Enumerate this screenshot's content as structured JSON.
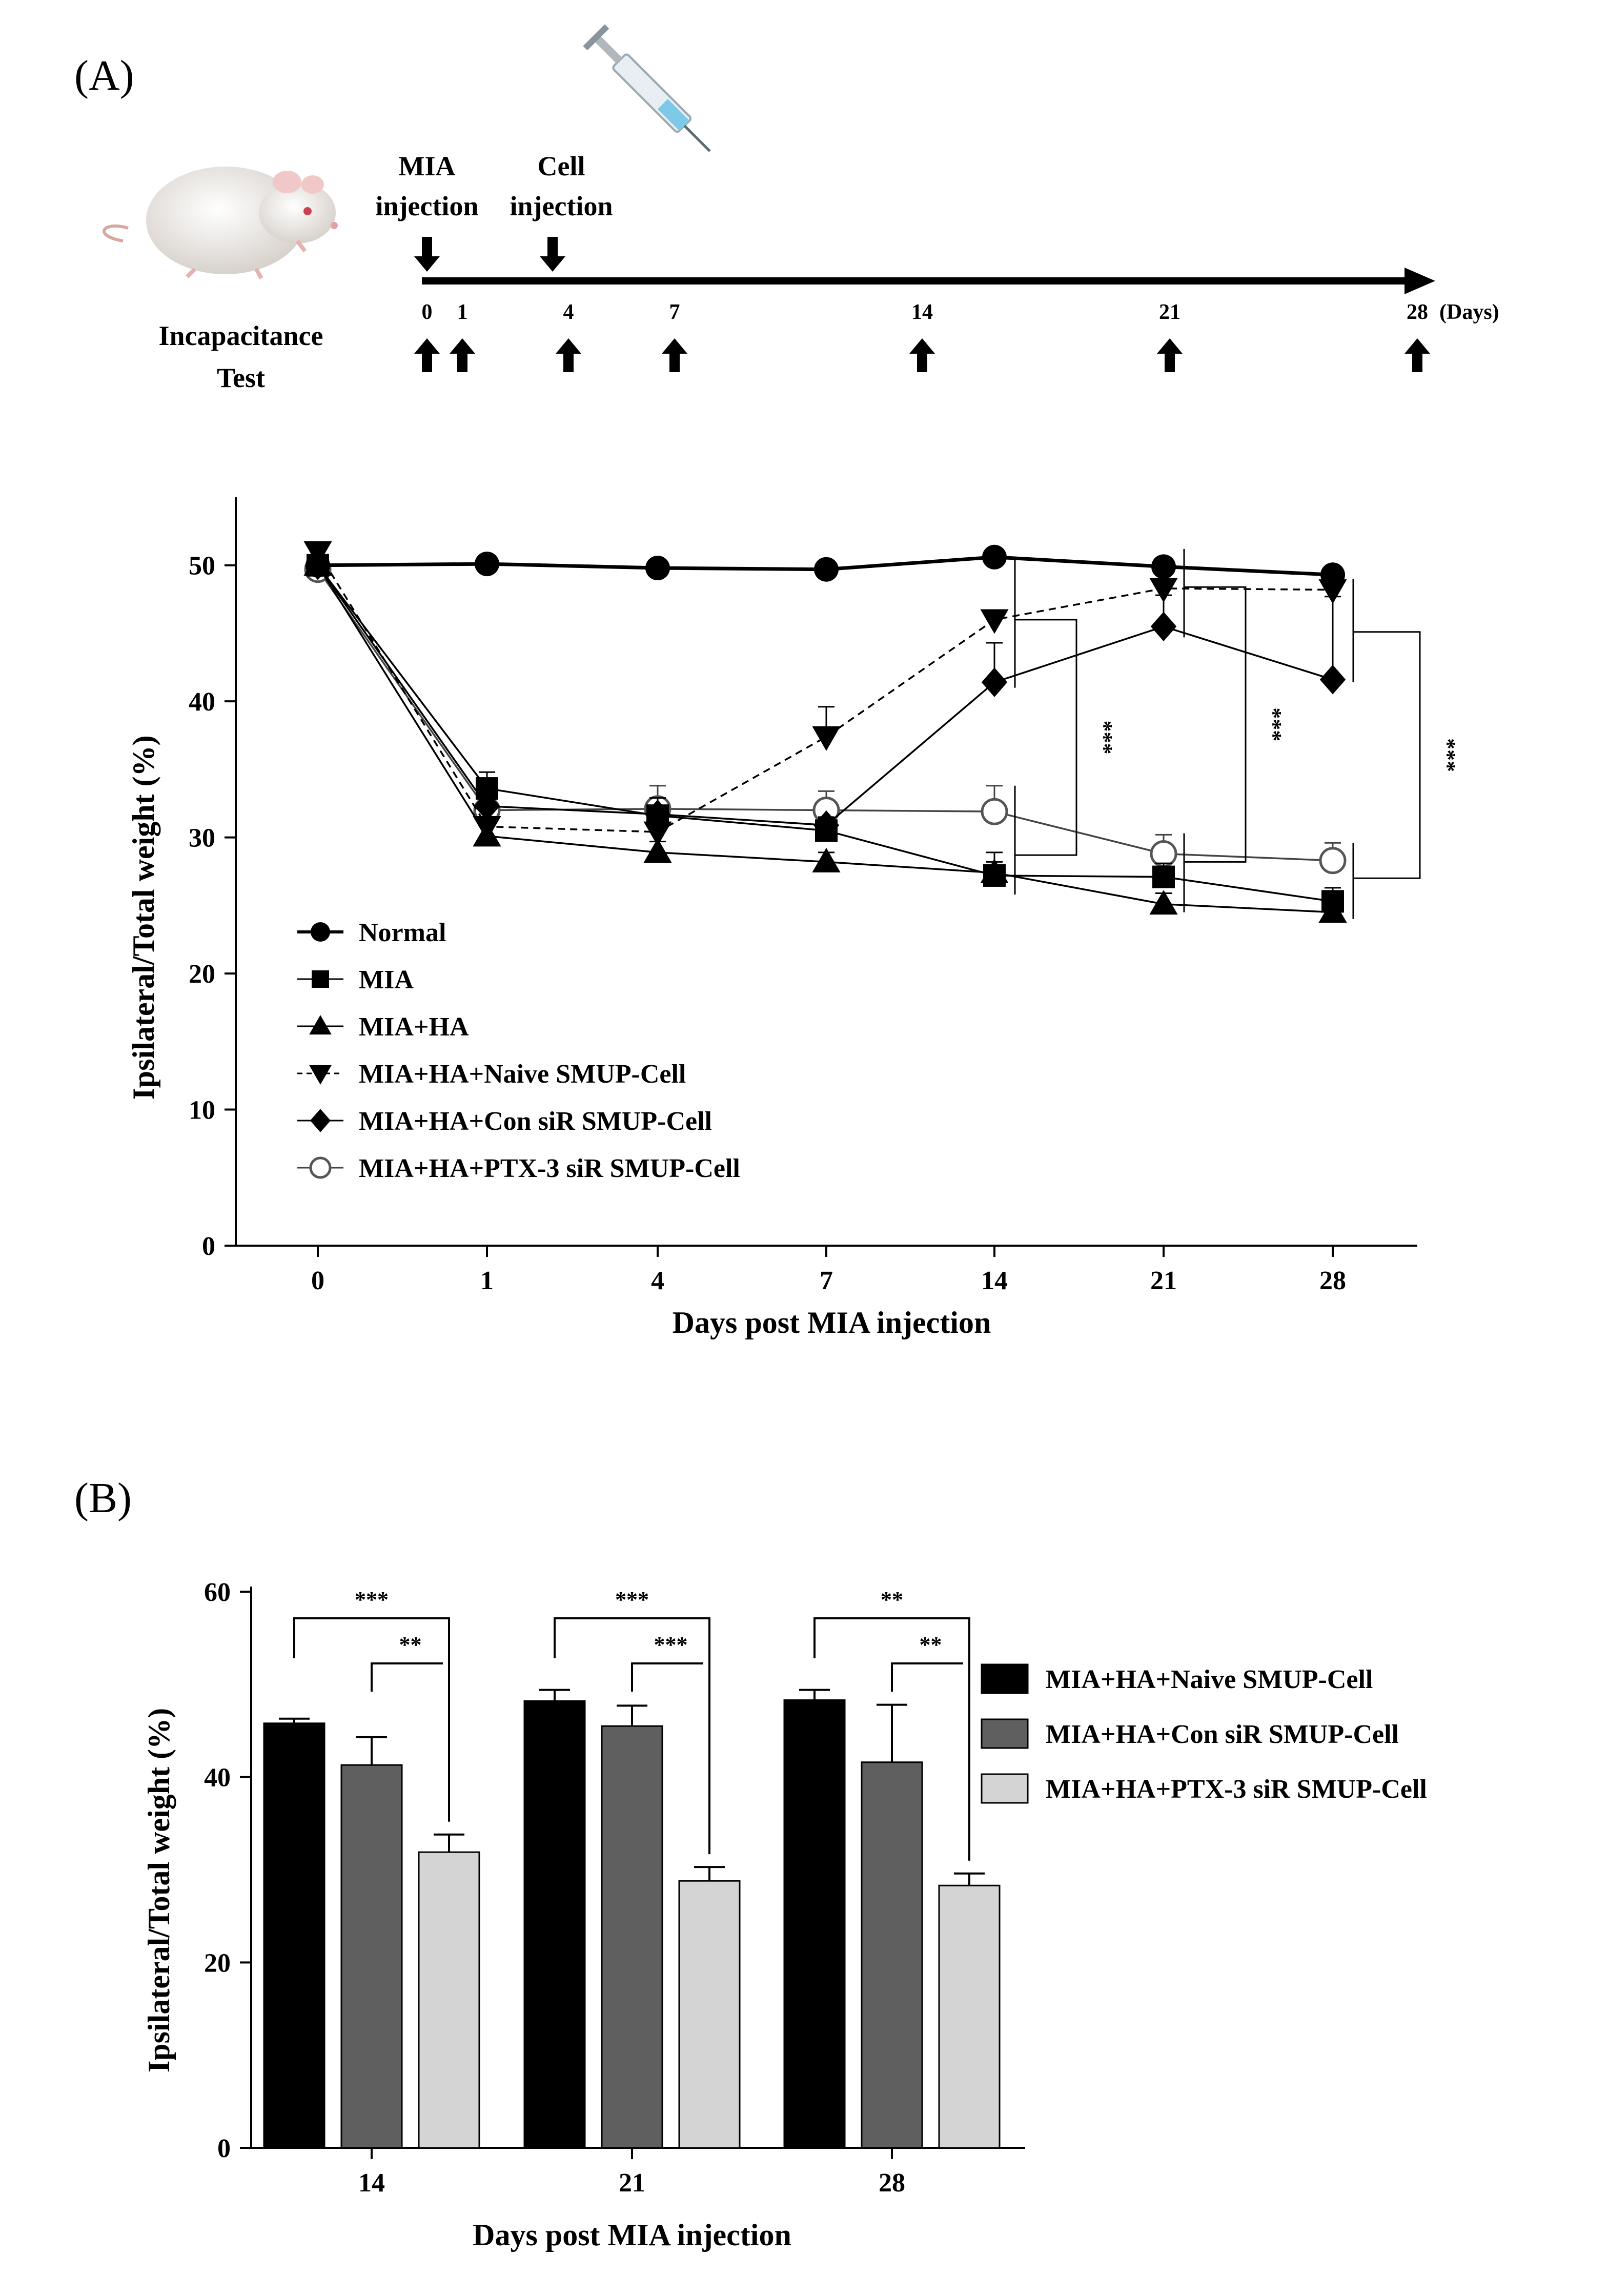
{
  "panels": {
    "a_label": "(A)",
    "b_label": "(B)"
  },
  "timeline": {
    "test_label_line1": "Incapacitance",
    "test_label_line2": "Test",
    "mia_label_line1": "MIA",
    "mia_label_line2": "injection",
    "cell_label_line1": "Cell",
    "cell_label_line2": "injection",
    "days": [
      "0",
      "1",
      "4",
      "7",
      "14",
      "21",
      "28"
    ],
    "days_unit": "(Days)",
    "icons": [
      "rat-icon",
      "syringe-icon"
    ]
  },
  "chart_data": [
    {
      "type": "line",
      "xlabel": "Days post MIA injection",
      "ylabel": "Ipsilateral/Total weight (%)",
      "categories": [
        "0",
        "1",
        "4",
        "7",
        "14",
        "21",
        "28"
      ],
      "ylim": [
        0,
        55
      ],
      "yticks": [
        "0",
        "10",
        "20",
        "30",
        "40",
        "50"
      ],
      "legend_position": "bottom-left",
      "series": [
        {
          "name": "Normal",
          "marker": "circle",
          "line": "solid-bold",
          "values": [
            50.0,
            50.1,
            49.8,
            49.7,
            50.6,
            49.9,
            49.3
          ],
          "err": [
            0,
            0.3,
            0.3,
            0.3,
            0.3,
            0.3,
            0.3
          ]
        },
        {
          "name": "MIA",
          "marker": "square",
          "line": "solid",
          "values": [
            50.0,
            33.6,
            31.6,
            30.5,
            27.2,
            27.1,
            25.3
          ],
          "err": [
            0,
            1.2,
            1.3,
            1.0,
            1.0,
            1.0,
            1.0
          ]
        },
        {
          "name": "MIA+HA",
          "marker": "triangle-up",
          "line": "solid",
          "values": [
            50.0,
            30.1,
            28.9,
            28.2,
            27.4,
            25.1,
            24.5
          ],
          "err": [
            0,
            0.8,
            0.8,
            0.7,
            1.5,
            0.8,
            0.8
          ]
        },
        {
          "name": "MIA+HA+Naive SMUP-Cell",
          "marker": "triangle-down",
          "line": "dashed",
          "values": [
            51.0,
            30.8,
            30.4,
            37.4,
            46.0,
            48.3,
            48.2
          ],
          "err": [
            0,
            0.5,
            0.5,
            2.2,
            0.5,
            1.1,
            1.2
          ]
        },
        {
          "name": "MIA+HA+Con siR SMUP-Cell",
          "marker": "diamond",
          "line": "solid",
          "values": [
            50.0,
            32.3,
            31.7,
            30.9,
            41.4,
            45.5,
            41.6
          ],
          "err": [
            0,
            0.5,
            0.5,
            0.5,
            2.9,
            2.3,
            6.1
          ]
        },
        {
          "name": "MIA+HA+PTX-3 siR SMUP-Cell",
          "marker": "open-circle",
          "line": "solid",
          "values": [
            49.7,
            32.0,
            32.1,
            32.0,
            31.9,
            28.8,
            28.3
          ],
          "err": [
            0,
            0.5,
            1.7,
            1.4,
            1.9,
            1.4,
            1.3
          ]
        }
      ],
      "significance": [
        "***",
        "***",
        "***"
      ]
    },
    {
      "type": "bar",
      "xlabel": "Days post MIA injection",
      "ylabel": "Ipsilateral/Total weight (%)",
      "categories": [
        "14",
        "21",
        "28"
      ],
      "ylim": [
        0,
        60
      ],
      "yticks": [
        "0",
        "20",
        "40",
        "60"
      ],
      "legend_position": "right",
      "series": [
        {
          "name": "MIA+HA+Naive SMUP-Cell",
          "color": "#000000",
          "values": [
            45.8,
            48.2,
            48.3
          ],
          "err": [
            0.5,
            1.2,
            1.1
          ]
        },
        {
          "name": "MIA+HA+Con siR SMUP-Cell",
          "color": "#5f5f5f",
          "values": [
            41.3,
            45.5,
            41.6
          ],
          "err": [
            3.0,
            2.2,
            6.2
          ]
        },
        {
          "name": "MIA+HA+PTX-3 siR SMUP-Cell",
          "color": "#d4d4d4",
          "values": [
            31.9,
            28.8,
            28.3
          ],
          "err": [
            1.9,
            1.5,
            1.3
          ]
        }
      ],
      "significance": [
        {
          "category": "14",
          "long": "***",
          "short": "**"
        },
        {
          "category": "21",
          "long": "***",
          "short": "***"
        },
        {
          "category": "28",
          "long": "**",
          "short": "**"
        }
      ]
    }
  ]
}
